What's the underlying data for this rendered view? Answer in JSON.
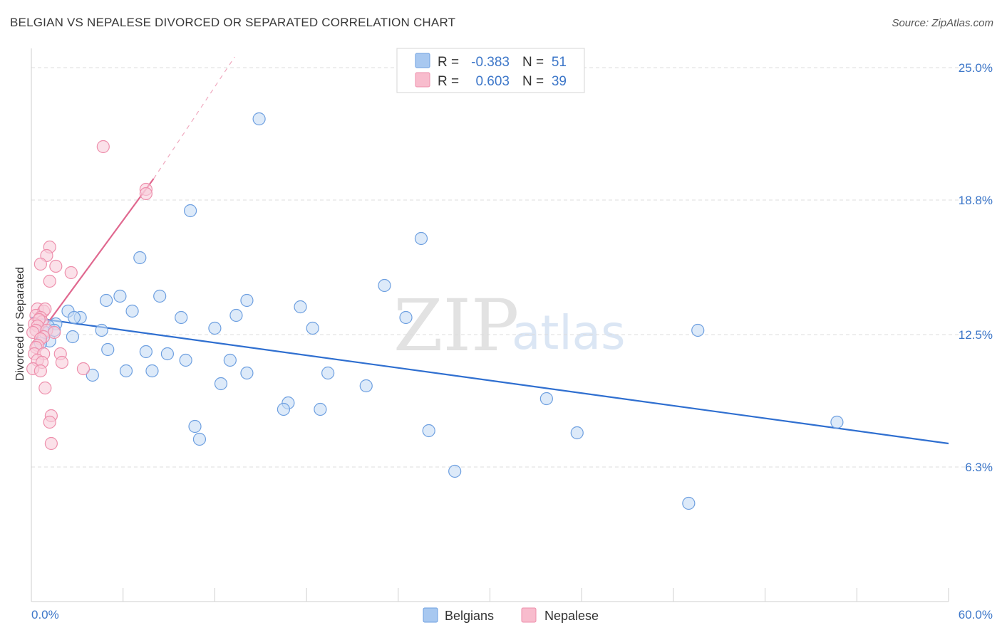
{
  "title": "BELGIAN VS NEPALESE DIVORCED OR SEPARATED CORRELATION CHART",
  "source": "Source: ZipAtlas.com",
  "watermark": {
    "zip": "ZIP",
    "atlas": "atlas"
  },
  "legend": {
    "r_label": "R =",
    "n_label": "N =",
    "rows": [
      {
        "name": "Belgians",
        "r": "-0.383",
        "n": "51",
        "color": "#a8c8f0",
        "stroke": "#6d9fe0"
      },
      {
        "name": "Nepalese",
        "r": "0.603",
        "n": "39",
        "color": "#f8bccd",
        "stroke": "#ee8fac"
      }
    ]
  },
  "chart_data": {
    "type": "scatter",
    "title": "BELGIAN VS NEPALESE DIVORCED OR SEPARATED CORRELATION CHART",
    "xlabel": "",
    "ylabel": "Divorced or Separated",
    "xlim": [
      0,
      60
    ],
    "ylim": [
      0,
      25.5
    ],
    "x_tick_labels": {
      "left": "0.0%",
      "right": "60.0%"
    },
    "y_ticks": [
      {
        "value": 6.3,
        "label": "6.3%"
      },
      {
        "value": 12.5,
        "label": "12.5%"
      },
      {
        "value": 18.8,
        "label": "18.8%"
      },
      {
        "value": 25.0,
        "label": "25.0%"
      }
    ],
    "series": [
      {
        "name": "Belgians",
        "color": "#6d9fe0",
        "fill": "#c7dcf5",
        "trend": {
          "x": [
            0,
            60
          ],
          "y": [
            13.3,
            7.4
          ],
          "color": "#2f6fd0"
        },
        "points": [
          [
            14.9,
            22.6
          ],
          [
            10.4,
            18.3
          ],
          [
            25.5,
            17.0
          ],
          [
            7.1,
            16.1
          ],
          [
            23.1,
            14.8
          ],
          [
            5.8,
            14.3
          ],
          [
            8.4,
            14.3
          ],
          [
            4.9,
            14.1
          ],
          [
            14.1,
            14.1
          ],
          [
            17.6,
            13.8
          ],
          [
            6.6,
            13.6
          ],
          [
            2.4,
            13.6
          ],
          [
            3.2,
            13.3
          ],
          [
            2.8,
            13.3
          ],
          [
            13.4,
            13.4
          ],
          [
            9.8,
            13.3
          ],
          [
            24.5,
            13.3
          ],
          [
            1.6,
            13.0
          ],
          [
            1.1,
            12.9
          ],
          [
            12.0,
            12.8
          ],
          [
            18.4,
            12.8
          ],
          [
            43.6,
            12.7
          ],
          [
            4.6,
            12.7
          ],
          [
            2.7,
            12.4
          ],
          [
            1.2,
            12.2
          ],
          [
            5.0,
            11.8
          ],
          [
            7.5,
            11.7
          ],
          [
            8.9,
            11.6
          ],
          [
            10.1,
            11.3
          ],
          [
            13.0,
            11.3
          ],
          [
            6.2,
            10.8
          ],
          [
            7.9,
            10.8
          ],
          [
            14.1,
            10.7
          ],
          [
            19.4,
            10.7
          ],
          [
            4.0,
            10.6
          ],
          [
            12.4,
            10.2
          ],
          [
            21.9,
            10.1
          ],
          [
            33.7,
            9.5
          ],
          [
            16.8,
            9.3
          ],
          [
            16.5,
            9.0
          ],
          [
            18.9,
            9.0
          ],
          [
            52.7,
            8.4
          ],
          [
            10.7,
            8.2
          ],
          [
            26.0,
            8.0
          ],
          [
            35.7,
            7.9
          ],
          [
            11.0,
            7.6
          ],
          [
            27.7,
            6.1
          ],
          [
            43.0,
            4.6
          ],
          [
            0.6,
            12.1
          ],
          [
            0.9,
            12.6
          ],
          [
            1.5,
            12.7
          ]
        ]
      },
      {
        "name": "Nepalese",
        "color": "#ee8fac",
        "fill": "#f9cdda",
        "trend": {
          "x": [
            0,
            8
          ],
          "y": [
            12.0,
            19.8
          ],
          "dashed_to": {
            "x": 13.3,
            "y": 25.5
          },
          "color": "#e0688f"
        },
        "points": [
          [
            4.7,
            21.3
          ],
          [
            7.5,
            19.3
          ],
          [
            7.5,
            19.1
          ],
          [
            1.2,
            16.6
          ],
          [
            1.0,
            16.2
          ],
          [
            0.6,
            15.8
          ],
          [
            1.6,
            15.7
          ],
          [
            2.6,
            15.4
          ],
          [
            1.2,
            15.0
          ],
          [
            0.4,
            13.7
          ],
          [
            0.8,
            13.6
          ],
          [
            0.9,
            13.7
          ],
          [
            0.3,
            13.4
          ],
          [
            0.6,
            13.3
          ],
          [
            0.7,
            13.1
          ],
          [
            0.2,
            13.0
          ],
          [
            0.5,
            13.2
          ],
          [
            0.4,
            12.9
          ],
          [
            0.3,
            12.7
          ],
          [
            1.0,
            12.7
          ],
          [
            0.1,
            12.6
          ],
          [
            1.5,
            12.6
          ],
          [
            0.8,
            12.4
          ],
          [
            0.6,
            12.3
          ],
          [
            0.4,
            12.0
          ],
          [
            0.3,
            11.9
          ],
          [
            0.2,
            11.6
          ],
          [
            0.8,
            11.6
          ],
          [
            1.9,
            11.6
          ],
          [
            0.4,
            11.3
          ],
          [
            0.7,
            11.2
          ],
          [
            2.0,
            11.2
          ],
          [
            3.4,
            10.9
          ],
          [
            0.1,
            10.9
          ],
          [
            0.6,
            10.8
          ],
          [
            0.9,
            10.0
          ],
          [
            1.3,
            8.7
          ],
          [
            1.2,
            8.4
          ],
          [
            1.3,
            7.4
          ]
        ]
      }
    ]
  }
}
